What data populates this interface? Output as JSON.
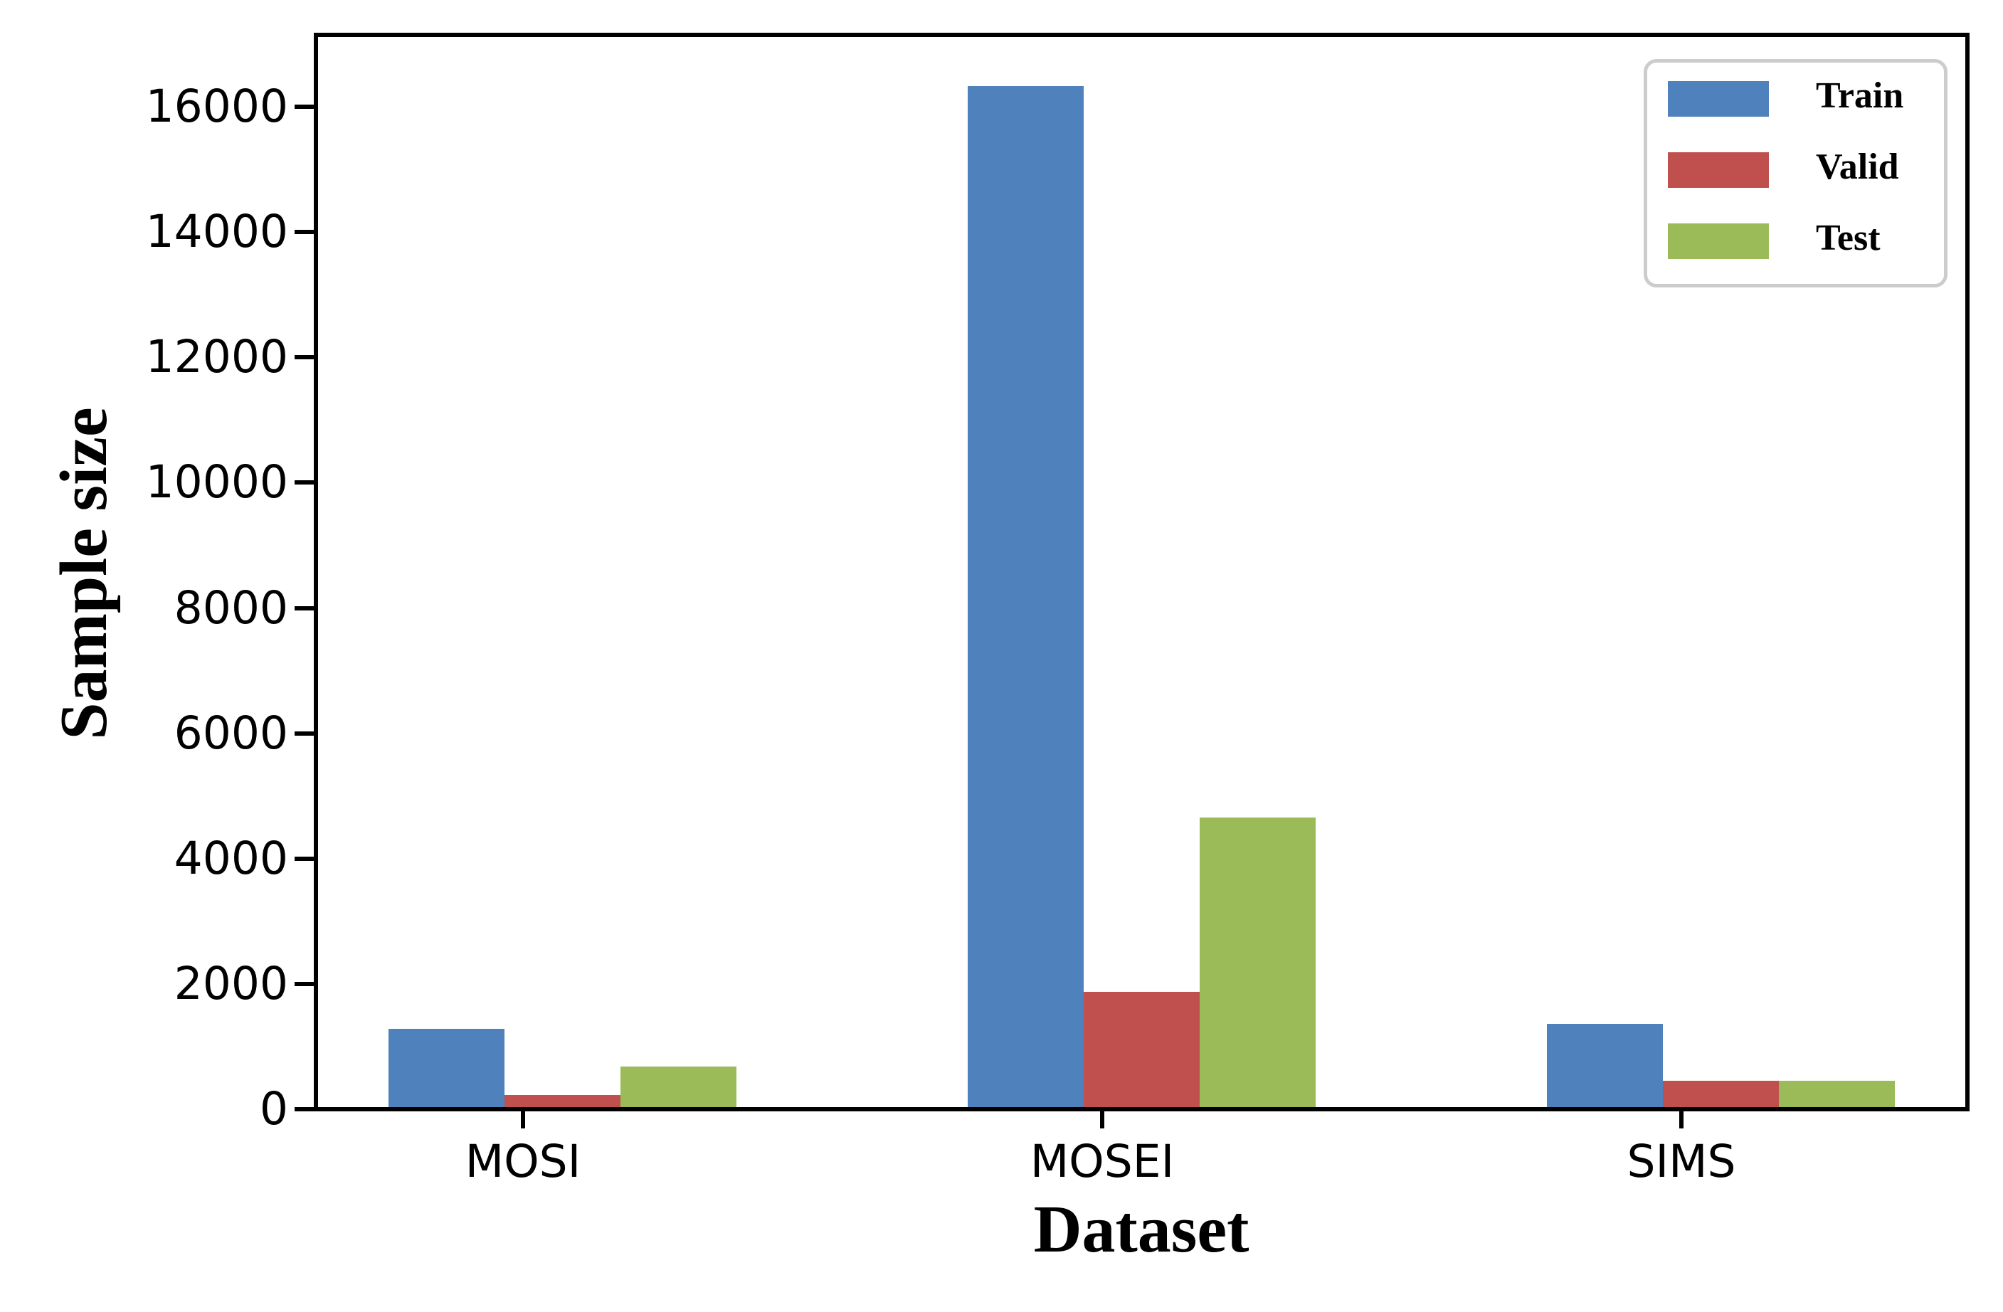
{
  "chart_data": {
    "type": "bar",
    "title": "",
    "xlabel": "Dataset",
    "ylabel": "Sample size",
    "categories": [
      "MOSI",
      "MOSEI",
      "SIMS"
    ],
    "series": [
      {
        "name": "Train",
        "color": "#4F81BD",
        "values": [
          1284,
          16326,
          1368
        ]
      },
      {
        "name": "Valid",
        "color": "#C0504D",
        "values": [
          229,
          1871,
          456
        ]
      },
      {
        "name": "Test",
        "color": "#9BBB59",
        "values": [
          686,
          4659,
          457
        ]
      }
    ],
    "ylim": [
      0,
      17115
    ],
    "yticks": [
      0,
      2000,
      4000,
      6000,
      8000,
      10000,
      12000,
      14000,
      16000
    ],
    "grid": false,
    "legend_position": "upper right",
    "axis_color": "#000000",
    "background_color": "#ffffff",
    "legend_border_color": "#cccccc"
  }
}
